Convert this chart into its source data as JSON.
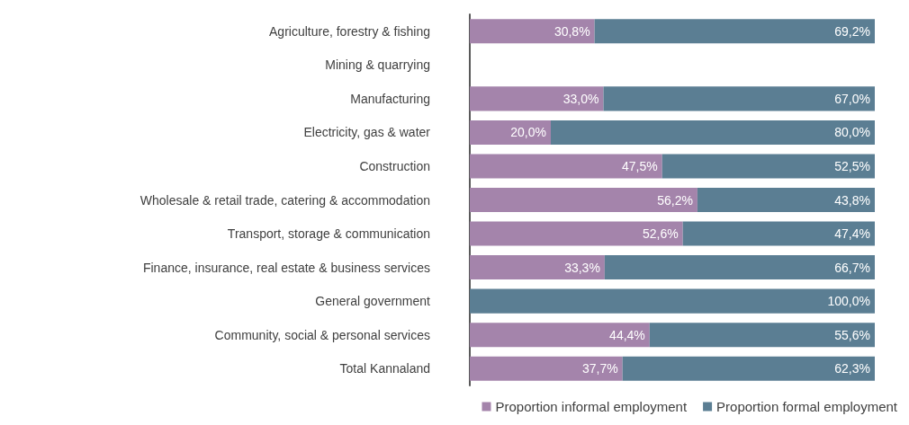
{
  "chart_data": {
    "type": "bar",
    "orientation": "horizontal",
    "stacked": true,
    "legend": "bottom right",
    "categories": [
      "Agriculture, forestry & fishing",
      "Mining & quarrying",
      "Manufacturing",
      "Electricity, gas & water",
      "Construction",
      "Wholesale & retail trade, catering & accommodation",
      "Transport, storage & communication",
      "Finance, insurance, real estate & business services",
      "General government",
      "Community, social & personal services",
      "Total Kannaland"
    ],
    "series": [
      {
        "name": "Proportion informal employment",
        "color": "#a484ab",
        "values": [
          30.8,
          null,
          33.0,
          20.0,
          47.5,
          56.2,
          52.6,
          33.3,
          null,
          44.4,
          37.7
        ],
        "value_labels": [
          "30,8%",
          null,
          "33,0%",
          "20,0%",
          "47,5%",
          "56,2%",
          "52,6%",
          "33,3%",
          null,
          "44,4%",
          "37,7%"
        ]
      },
      {
        "name": "Proportion formal employment",
        "color": "#5b7e93",
        "values": [
          69.2,
          null,
          67.0,
          80.0,
          52.5,
          43.8,
          47.4,
          66.7,
          100.0,
          55.6,
          62.3
        ],
        "value_labels": [
          "69,2%",
          null,
          "67,0%",
          "80,0%",
          "52,5%",
          "43,8%",
          "47,4%",
          "66,7%",
          "100,0%",
          "55,6%",
          "62,3%"
        ]
      }
    ]
  }
}
